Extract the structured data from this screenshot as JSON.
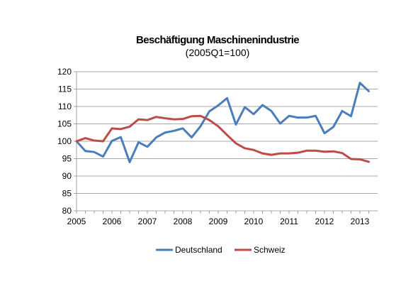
{
  "chart_data": {
    "type": "line",
    "title": "Beschäftigung Maschinenindustrie",
    "subtitle": "(2005Q1=100)",
    "xlabel": "",
    "ylabel": "",
    "x_tick_labels": [
      "2005",
      "2006",
      "2007",
      "2008",
      "2009",
      "2010",
      "2011",
      "2012",
      "2013"
    ],
    "y_tick_labels": [
      "80",
      "85",
      "90",
      "95",
      "100",
      "105",
      "110",
      "115",
      "120"
    ],
    "ylim": [
      80,
      120
    ],
    "x": [
      "2005Q1",
      "2005Q2",
      "2005Q3",
      "2005Q4",
      "2006Q1",
      "2006Q2",
      "2006Q3",
      "2006Q4",
      "2007Q1",
      "2007Q2",
      "2007Q3",
      "2007Q4",
      "2008Q1",
      "2008Q2",
      "2008Q3",
      "2008Q4",
      "2009Q1",
      "2009Q2",
      "2009Q3",
      "2009Q4",
      "2010Q1",
      "2010Q2",
      "2010Q3",
      "2010Q4",
      "2011Q1",
      "2011Q2",
      "2011Q3",
      "2011Q4",
      "2012Q1",
      "2012Q2",
      "2012Q3",
      "2012Q4",
      "2013Q1",
      "2013Q2"
    ],
    "grid": "horizontal",
    "legend_position": "bottom",
    "series": [
      {
        "name": "Deutschland",
        "color": "#4a7ebb",
        "values": [
          100.0,
          97.2,
          96.9,
          95.6,
          100.1,
          101.2,
          94.0,
          99.7,
          98.4,
          101.1,
          102.5,
          103.0,
          103.7,
          101.1,
          104.3,
          108.6,
          110.3,
          112.4,
          104.8,
          109.8,
          107.8,
          110.4,
          108.7,
          105.1,
          107.3,
          106.8,
          106.8,
          107.3,
          102.3,
          104.1,
          108.7,
          107.2,
          116.8,
          114.4
        ]
      },
      {
        "name": "Schweiz",
        "color": "#be4b48",
        "values": [
          100.0,
          100.9,
          100.2,
          100.0,
          103.7,
          103.5,
          104.2,
          106.3,
          106.1,
          107.0,
          106.6,
          106.3,
          106.4,
          107.2,
          107.3,
          106.1,
          104.3,
          101.8,
          99.4,
          98.0,
          97.5,
          96.5,
          96.1,
          96.5,
          96.5,
          96.7,
          97.3,
          97.3,
          97.0,
          97.1,
          96.6,
          94.9,
          94.8,
          94.1
        ]
      }
    ]
  }
}
